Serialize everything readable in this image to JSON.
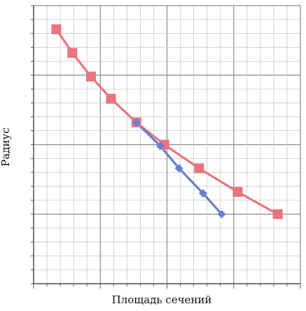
{
  "chart_data": {
    "type": "line",
    "title": "",
    "xlabel": "Площадь сечений",
    "ylabel": "Радиус",
    "x_ticks_labeled": false,
    "y_ticks_labeled": false,
    "grid": true,
    "legend": "none",
    "xlim": [
      0,
      20
    ],
    "ylim": [
      0,
      20
    ],
    "series": [
      {
        "color": "#e8747f",
        "marker": "square",
        "points": [
          [
            1.7,
            18.3
          ],
          [
            2.9,
            16.6
          ],
          [
            4.3,
            14.9
          ],
          [
            5.8,
            13.3
          ],
          [
            7.7,
            11.6
          ],
          [
            9.8,
            10.0
          ],
          [
            12.4,
            8.3
          ],
          [
            15.3,
            6.6
          ],
          [
            18.3,
            5.0
          ]
        ]
      },
      {
        "color": "#6a7fcc",
        "marker": "diamond",
        "points": [
          [
            7.7,
            11.6
          ],
          [
            9.5,
            9.9
          ],
          [
            10.9,
            8.3
          ],
          [
            12.7,
            6.5
          ],
          [
            14.1,
            5.0
          ]
        ]
      }
    ]
  }
}
